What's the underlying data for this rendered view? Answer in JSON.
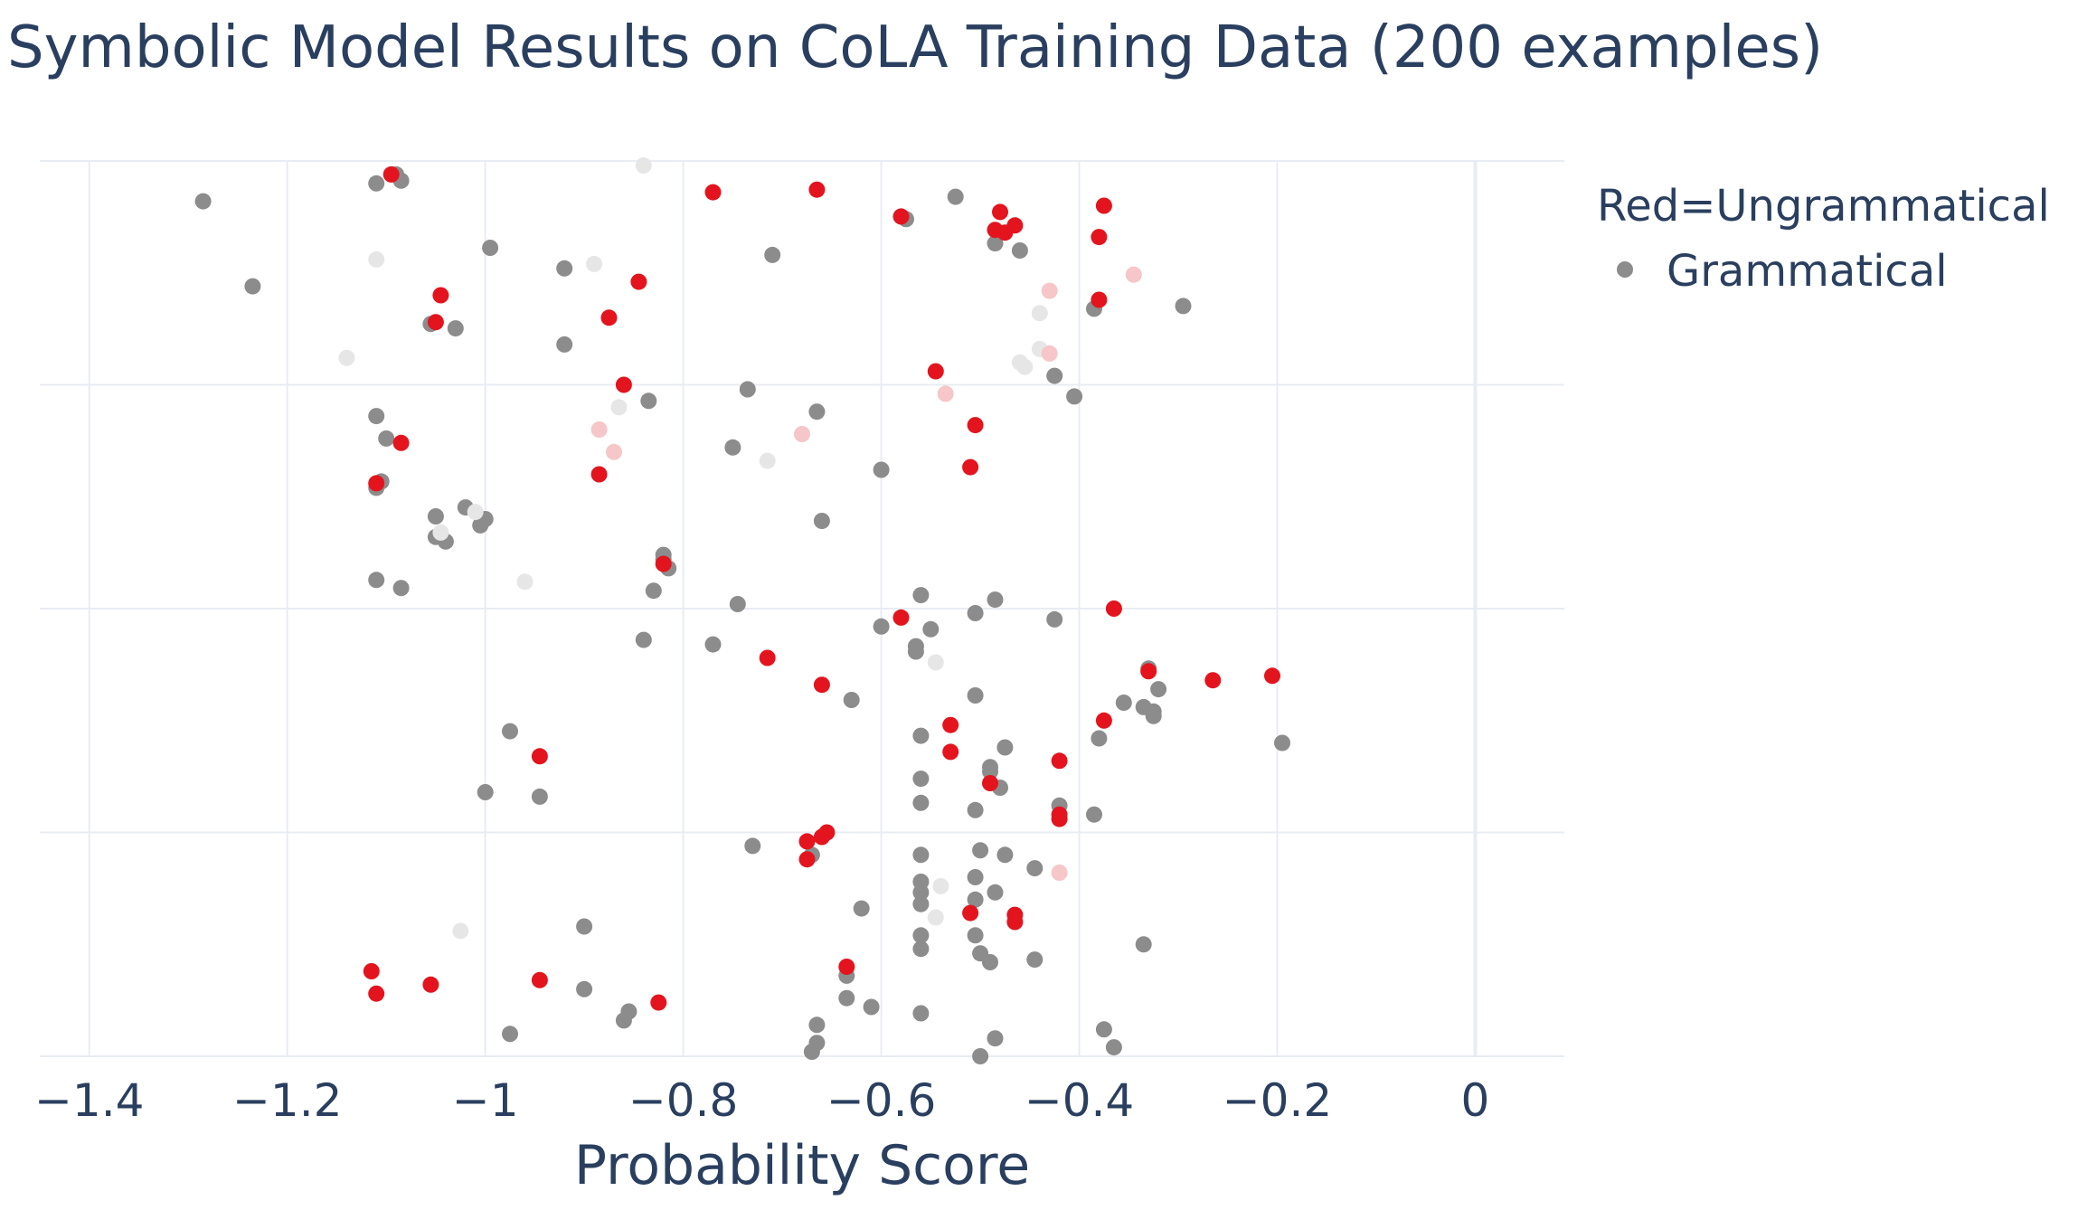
{
  "chart_data": {
    "type": "scatter",
    "title": "Symbolic Model Results on CoLA Training Data (200 examples)",
    "xlabel": "Probability Score",
    "ylabel": "",
    "xlim": [
      -1.45,
      0.09
    ],
    "ylim": [
      0,
      1
    ],
    "x_ticks": [
      -1.4,
      -1.2,
      -1,
      -0.8,
      -0.6,
      -0.4,
      -0.2,
      0
    ],
    "x_tick_labels": [
      "−1.4",
      "−1.2",
      "−1",
      "−0.8",
      "−0.6",
      "−0.4",
      "−0.2",
      "0"
    ],
    "y_gridlines": [
      0,
      0.25,
      0.5,
      0.75,
      1
    ],
    "grid": true,
    "legend": {
      "placement": "top-right",
      "title": "Red=Ungrammatical",
      "entries": [
        "Grammatical"
      ]
    },
    "colors": {
      "grammatical": "#8c8c8c",
      "ungrammatical": "#e3141e",
      "grammatical_faint": "#e6e6e6",
      "ungrammatical_faint": "#f6c6c8",
      "grid": "#e8ecf3",
      "text": "#2a3f5f"
    },
    "series": [
      {
        "key": "grammatical",
        "points": [
          [
            -1.285,
            0.955
          ],
          [
            -1.235,
            0.86
          ],
          [
            -1.11,
            0.975
          ],
          [
            -1.09,
            0.985
          ],
          [
            -1.085,
            0.978
          ],
          [
            -0.995,
            0.903
          ],
          [
            -0.92,
            0.88
          ],
          [
            -0.92,
            0.795
          ],
          [
            -1.055,
            0.818
          ],
          [
            -1.03,
            0.813
          ],
          [
            -0.71,
            0.895
          ],
          [
            -0.575,
            0.935
          ],
          [
            -0.525,
            0.96
          ],
          [
            -0.485,
            0.908
          ],
          [
            -0.46,
            0.9
          ],
          [
            -0.385,
            0.835
          ],
          [
            -0.295,
            0.838
          ],
          [
            -0.425,
            0.76
          ],
          [
            -0.405,
            0.737
          ],
          [
            -0.735,
            0.745
          ],
          [
            -0.665,
            0.72
          ],
          [
            -0.835,
            0.732
          ],
          [
            -1.11,
            0.715
          ],
          [
            -1.1,
            0.69
          ],
          [
            -0.75,
            0.68
          ],
          [
            -0.6,
            0.655
          ],
          [
            -1.11,
            0.635
          ],
          [
            -1.105,
            0.642
          ],
          [
            -1.05,
            0.603
          ],
          [
            -1.02,
            0.613
          ],
          [
            -1.005,
            0.593
          ],
          [
            -1.0,
            0.6
          ],
          [
            -1.05,
            0.58
          ],
          [
            -1.04,
            0.575
          ],
          [
            -0.66,
            0.598
          ],
          [
            -0.82,
            0.56
          ],
          [
            -0.82,
            0.555
          ],
          [
            -0.815,
            0.545
          ],
          [
            -0.83,
            0.52
          ],
          [
            -1.11,
            0.532
          ],
          [
            -1.085,
            0.523
          ],
          [
            -0.745,
            0.505
          ],
          [
            -0.56,
            0.515
          ],
          [
            -0.485,
            0.51
          ],
          [
            -0.505,
            0.495
          ],
          [
            -0.6,
            0.48
          ],
          [
            -0.55,
            0.477
          ],
          [
            -0.425,
            0.488
          ],
          [
            -0.84,
            0.465
          ],
          [
            -0.77,
            0.46
          ],
          [
            -0.565,
            0.458
          ],
          [
            -0.565,
            0.452
          ],
          [
            -0.33,
            0.433
          ],
          [
            -0.32,
            0.41
          ],
          [
            -0.355,
            0.395
          ],
          [
            -0.335,
            0.39
          ],
          [
            -0.325,
            0.385
          ],
          [
            -0.325,
            0.38
          ],
          [
            -0.63,
            0.398
          ],
          [
            -0.505,
            0.403
          ],
          [
            -0.195,
            0.35
          ],
          [
            -0.38,
            0.355
          ],
          [
            -0.475,
            0.345
          ],
          [
            -0.56,
            0.358
          ],
          [
            -0.975,
            0.363
          ],
          [
            -0.49,
            0.323
          ],
          [
            -0.49,
            0.318
          ],
          [
            -0.56,
            0.31
          ],
          [
            -0.48,
            0.3
          ],
          [
            -0.42,
            0.28
          ],
          [
            -0.945,
            0.29
          ],
          [
            -1.0,
            0.295
          ],
          [
            -0.56,
            0.283
          ],
          [
            -0.505,
            0.275
          ],
          [
            -0.385,
            0.27
          ],
          [
            -0.73,
            0.235
          ],
          [
            -0.67,
            0.225
          ],
          [
            -0.56,
            0.225
          ],
          [
            -0.5,
            0.23
          ],
          [
            -0.475,
            0.225
          ],
          [
            -0.445,
            0.21
          ],
          [
            -0.56,
            0.195
          ],
          [
            -0.505,
            0.2
          ],
          [
            -0.485,
            0.183
          ],
          [
            -0.56,
            0.183
          ],
          [
            -0.56,
            0.17
          ],
          [
            -0.62,
            0.165
          ],
          [
            -0.505,
            0.175
          ],
          [
            -0.9,
            0.145
          ],
          [
            -0.56,
            0.135
          ],
          [
            -0.505,
            0.135
          ],
          [
            -0.5,
            0.115
          ],
          [
            -0.49,
            0.105
          ],
          [
            -0.445,
            0.108
          ],
          [
            -0.56,
            0.12
          ],
          [
            -0.335,
            0.125
          ],
          [
            -0.635,
            0.09
          ],
          [
            -0.635,
            0.065
          ],
          [
            -0.61,
            0.055
          ],
          [
            -0.56,
            0.048
          ],
          [
            -0.9,
            0.075
          ],
          [
            -0.855,
            0.05
          ],
          [
            -0.86,
            0.04
          ],
          [
            -0.975,
            0.025
          ],
          [
            -0.665,
            0.035
          ],
          [
            -0.665,
            0.015
          ],
          [
            -0.67,
            0.005
          ],
          [
            -0.5,
            0.0
          ],
          [
            -0.485,
            0.02
          ],
          [
            -0.375,
            0.03
          ],
          [
            -0.365,
            0.01
          ]
        ]
      },
      {
        "key": "ungrammatical",
        "points": [
          [
            -1.095,
            0.985
          ],
          [
            -0.77,
            0.965
          ],
          [
            -0.665,
            0.968
          ],
          [
            -0.58,
            0.938
          ],
          [
            -0.48,
            0.943
          ],
          [
            -0.465,
            0.928
          ],
          [
            -0.485,
            0.923
          ],
          [
            -0.475,
            0.92
          ],
          [
            -0.375,
            0.95
          ],
          [
            -0.38,
            0.915
          ],
          [
            -0.845,
            0.865
          ],
          [
            -1.045,
            0.85
          ],
          [
            -0.875,
            0.825
          ],
          [
            -1.05,
            0.82
          ],
          [
            -0.38,
            0.845
          ],
          [
            -0.545,
            0.765
          ],
          [
            -0.86,
            0.75
          ],
          [
            -0.505,
            0.705
          ],
          [
            -1.085,
            0.685
          ],
          [
            -0.885,
            0.65
          ],
          [
            -0.51,
            0.658
          ],
          [
            -1.11,
            0.64
          ],
          [
            -0.82,
            0.55
          ],
          [
            -0.365,
            0.5
          ],
          [
            -0.58,
            0.49
          ],
          [
            -0.715,
            0.445
          ],
          [
            -0.66,
            0.415
          ],
          [
            -0.33,
            0.43
          ],
          [
            -0.265,
            0.42
          ],
          [
            -0.205,
            0.425
          ],
          [
            -0.375,
            0.375
          ],
          [
            -0.53,
            0.37
          ],
          [
            -0.945,
            0.335
          ],
          [
            -0.53,
            0.34
          ],
          [
            -0.42,
            0.33
          ],
          [
            -0.49,
            0.305
          ],
          [
            -0.42,
            0.27
          ],
          [
            -0.42,
            0.265
          ],
          [
            -0.655,
            0.25
          ],
          [
            -0.66,
            0.245
          ],
          [
            -0.675,
            0.24
          ],
          [
            -0.675,
            0.22
          ],
          [
            -0.51,
            0.16
          ],
          [
            -0.465,
            0.158
          ],
          [
            -0.465,
            0.15
          ],
          [
            -0.635,
            0.1
          ],
          [
            -1.115,
            0.095
          ],
          [
            -1.055,
            0.08
          ],
          [
            -0.945,
            0.085
          ],
          [
            -1.11,
            0.07
          ],
          [
            -0.825,
            0.06
          ]
        ]
      },
      {
        "key": "grammatical_faint",
        "points": [
          [
            -0.84,
            0.995
          ],
          [
            -1.11,
            0.89
          ],
          [
            -0.89,
            0.885
          ],
          [
            -0.44,
            0.83
          ],
          [
            -1.14,
            0.78
          ],
          [
            -0.44,
            0.79
          ],
          [
            -0.46,
            0.775
          ],
          [
            -0.455,
            0.77
          ],
          [
            -0.865,
            0.725
          ],
          [
            -0.715,
            0.665
          ],
          [
            -1.01,
            0.608
          ],
          [
            -0.96,
            0.53
          ],
          [
            -0.545,
            0.44
          ],
          [
            -0.54,
            0.19
          ],
          [
            -1.025,
            0.14
          ],
          [
            -0.545,
            0.155
          ],
          [
            -1.045,
            0.585
          ]
        ]
      },
      {
        "key": "ungrammatical_faint",
        "points": [
          [
            -0.43,
            0.855
          ],
          [
            -0.345,
            0.873
          ],
          [
            -0.43,
            0.785
          ],
          [
            -0.535,
            0.74
          ],
          [
            -0.885,
            0.7
          ],
          [
            -0.68,
            0.695
          ],
          [
            -0.87,
            0.675
          ],
          [
            -0.42,
            0.205
          ]
        ]
      }
    ]
  }
}
